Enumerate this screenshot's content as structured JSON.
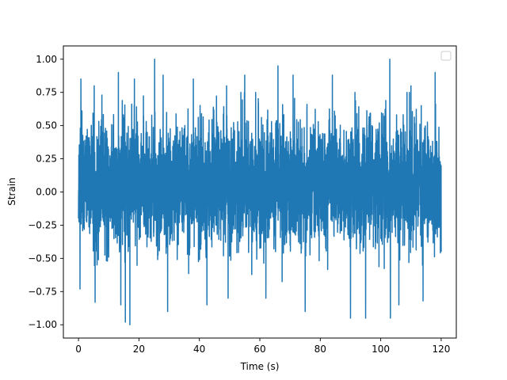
{
  "chart_data": {
    "type": "line",
    "title": "",
    "xlabel": "Time (s)",
    "ylabel": "Strain",
    "xlim": [
      -5,
      125
    ],
    "ylim": [
      -1.1,
      1.1
    ],
    "xticks": [
      0,
      20,
      40,
      60,
      80,
      100,
      120
    ],
    "xtick_labels": [
      "0",
      "20",
      "40",
      "60",
      "80",
      "100",
      "120"
    ],
    "yticks": [
      -1.0,
      -0.75,
      -0.5,
      -0.25,
      0.0,
      0.25,
      0.5,
      0.75,
      1.0
    ],
    "ytick_labels": [
      "−1.00",
      "−0.75",
      "−0.50",
      "−0.25",
      "0.00",
      "0.25",
      "0.50",
      "0.75",
      "1.00"
    ],
    "grid": false,
    "legend": {
      "placement": "upper-right",
      "entries": []
    },
    "series": [
      {
        "color": "#1f77b4",
        "x_range": [
          0,
          120
        ],
        "typical_envelope": [
          -0.5,
          0.6
        ],
        "peaks": [
          {
            "x": 0.8,
            "y": 0.85
          },
          {
            "x": 0.5,
            "y": -0.73
          },
          {
            "x": 5.2,
            "y": 0.8
          },
          {
            "x": 5.5,
            "y": -0.83
          },
          {
            "x": 13.2,
            "y": 0.9
          },
          {
            "x": 14.0,
            "y": -0.85
          },
          {
            "x": 15.5,
            "y": -0.98
          },
          {
            "x": 17.0,
            "y": -1.0
          },
          {
            "x": 18.5,
            "y": 0.85
          },
          {
            "x": 25.2,
            "y": 1.0
          },
          {
            "x": 28.0,
            "y": 0.88
          },
          {
            "x": 29.5,
            "y": -0.9
          },
          {
            "x": 38.0,
            "y": 0.85
          },
          {
            "x": 42.5,
            "y": -0.85
          },
          {
            "x": 49.0,
            "y": 0.8
          },
          {
            "x": 49.5,
            "y": -0.8
          },
          {
            "x": 55.0,
            "y": 0.88
          },
          {
            "x": 62.0,
            "y": -0.8
          },
          {
            "x": 66.0,
            "y": 0.95
          },
          {
            "x": 71.0,
            "y": 0.88
          },
          {
            "x": 75.0,
            "y": -0.9
          },
          {
            "x": 84.0,
            "y": 0.88
          },
          {
            "x": 90.0,
            "y": -0.95
          },
          {
            "x": 95.0,
            "y": -0.95
          },
          {
            "x": 103.0,
            "y": 1.0
          },
          {
            "x": 103.2,
            "y": -0.95
          },
          {
            "x": 106.0,
            "y": -0.85
          },
          {
            "x": 110.0,
            "y": 0.8
          },
          {
            "x": 114.0,
            "y": -0.82
          },
          {
            "x": 118.0,
            "y": 0.9
          },
          {
            "x": 120.0,
            "y": -0.45
          }
        ]
      }
    ]
  }
}
